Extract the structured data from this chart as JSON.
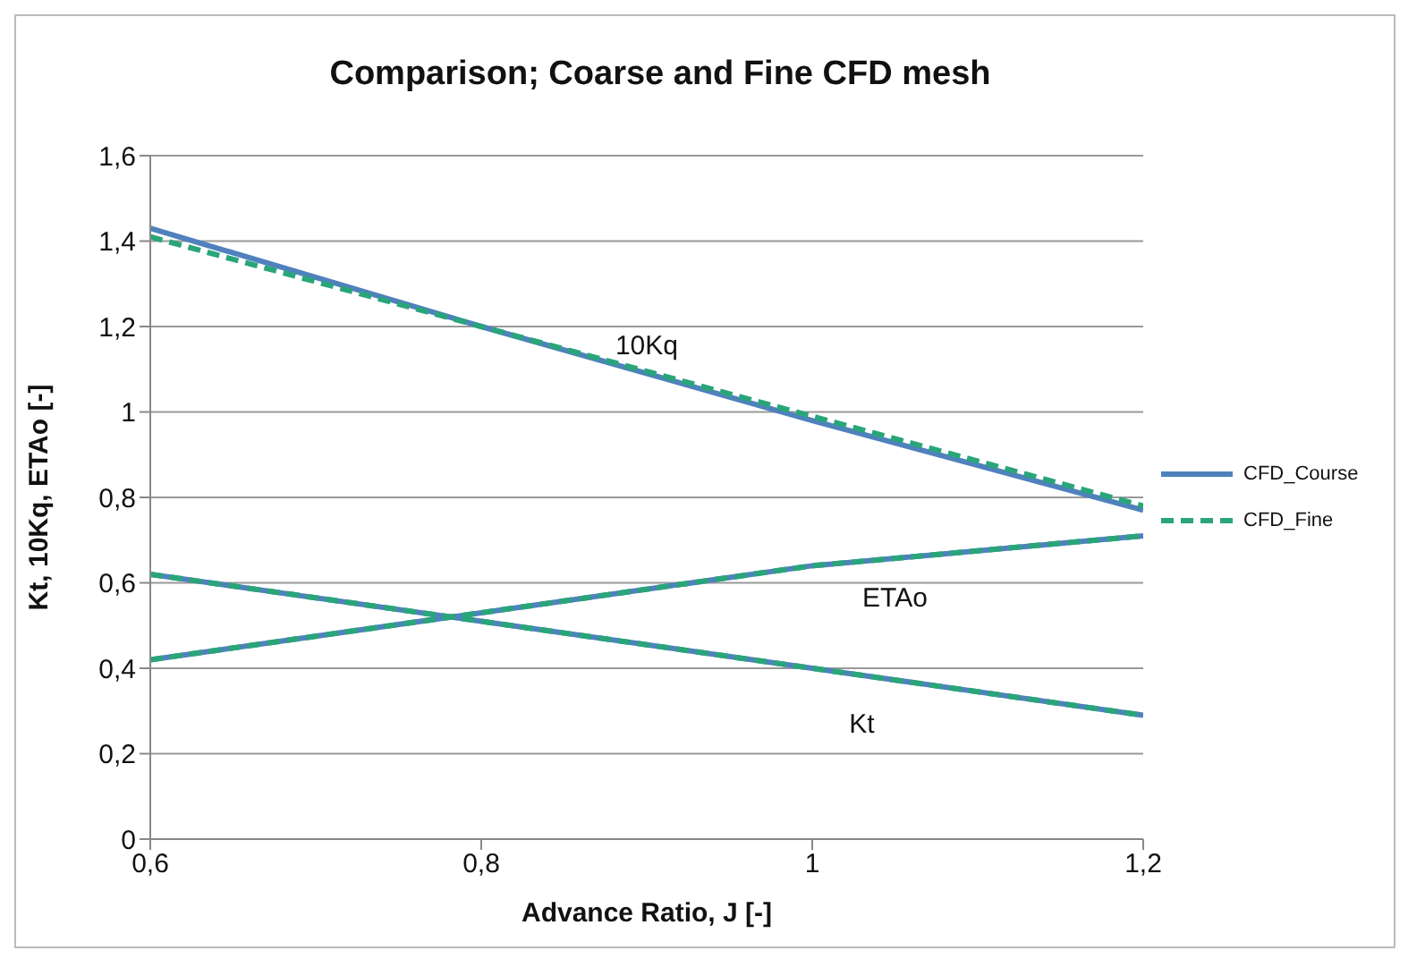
{
  "chart_data": {
    "type": "line",
    "title": "Comparison; Coarse and Fine CFD mesh",
    "xlabel": "Advance Ratio, J [-]",
    "ylabel": "Kt, 10Kq, ETAo [-]",
    "x": [
      0.6,
      0.8,
      1.0,
      1.2
    ],
    "series": [
      {
        "name": "CFD_Course",
        "color": "#4f81bd",
        "line_style": "solid",
        "values": [
          1.43,
          1.2,
          0.98,
          0.77
        ]
      },
      {
        "color": "#4f81bd",
        "line_style": "solid",
        "values": [
          0.42,
          0.53,
          0.64,
          0.71
        ]
      },
      {
        "color": "#4f81bd",
        "line_style": "solid",
        "values": [
          0.62,
          0.51,
          0.4,
          0.29
        ]
      },
      {
        "name": "CFD_Fine",
        "color": "#2aa57a",
        "line_style": "dashed",
        "values": [
          1.41,
          1.2,
          0.99,
          0.78
        ]
      },
      {
        "color": "#2aa57a",
        "line_style": "dashed",
        "values": [
          0.42,
          0.53,
          0.64,
          0.71
        ]
      },
      {
        "color": "#2aa57a",
        "line_style": "dashed",
        "values": [
          0.62,
          0.51,
          0.4,
          0.29
        ]
      }
    ],
    "xlim": [
      0.6,
      1.2
    ],
    "xticks": [
      {
        "value": 0.6,
        "label": "0,6"
      },
      {
        "value": 0.8,
        "label": "0,8"
      },
      1,
      {
        "value": 1.2,
        "label": "1,2"
      }
    ],
    "ylim": [
      0,
      1.6
    ],
    "yticks": [
      0,
      {
        "value": 0.2,
        "label": "0,2"
      },
      {
        "value": 0.4,
        "label": "0,4"
      },
      {
        "value": 0.6,
        "label": "0,6"
      },
      {
        "value": 0.8,
        "label": "0,8"
      },
      1,
      {
        "value": 1.2,
        "label": "1,2"
      },
      {
        "value": 1.4,
        "label": "1,4"
      },
      {
        "value": 1.6,
        "label": "1,6"
      }
    ],
    "annotations": [
      {
        "text": "10Kq",
        "x": 0.9,
        "y": 1.09
      },
      {
        "text": "ETAo",
        "x": 1.05,
        "y": 0.66
      },
      {
        "text": "Kt",
        "x": 1.03,
        "y": 0.38
      }
    ],
    "grid": "y",
    "legend": "right",
    "marker": "none"
  }
}
